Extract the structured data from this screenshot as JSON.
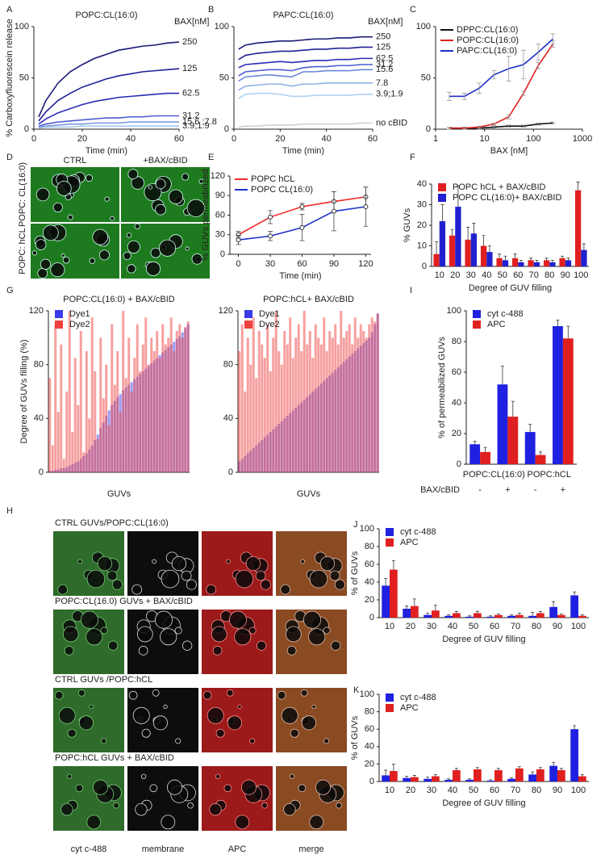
{
  "chart_data": [
    {
      "type": "line",
      "panel": "A",
      "title": "POPC:CL(16:0)",
      "legend_title": "BAX[nM]",
      "xlabel": "Time (min)",
      "ylabel": "% Carboxyfluorescein release",
      "end_labels": true,
      "x": [
        2,
        5,
        10,
        15,
        20,
        25,
        30,
        35,
        40,
        45,
        50,
        55,
        60
      ],
      "xlim": [
        0,
        60
      ],
      "xticks": [
        0,
        20,
        40,
        60
      ],
      "ylim": [
        0,
        100
      ],
      "yticks": [
        0,
        50,
        100
      ],
      "series": [
        {
          "name": "250",
          "color": "#1a1a78",
          "values": [
            12,
            28,
            45,
            56,
            63,
            69,
            73,
            77,
            79,
            81,
            82,
            84,
            85
          ]
        },
        {
          "name": "125",
          "color": "#202098",
          "values": [
            8,
            17,
            28,
            35,
            41,
            45,
            49,
            52,
            54,
            56,
            57,
            58,
            59
          ]
        },
        {
          "name": "62.5",
          "color": "#2a2ab8",
          "values": [
            5,
            10,
            16,
            20,
            24,
            27,
            29,
            31,
            32,
            33,
            34,
            35,
            35
          ]
        },
        {
          "name": "31.2",
          "color": "#4a5cd0",
          "values": [
            3,
            5,
            7,
            8,
            9,
            10,
            11,
            11,
            12,
            12,
            13,
            13,
            13
          ]
        },
        {
          "name": "15.6 ;7.8",
          "color": "#7a9ae0",
          "values": [
            2,
            3,
            4,
            5,
            5,
            6,
            6,
            6,
            7,
            7,
            7,
            7,
            7
          ]
        },
        {
          "name": "3.9;1.9",
          "color": "#a8c8ec",
          "values": [
            1,
            2,
            2,
            2,
            3,
            3,
            3,
            3,
            3,
            3,
            3,
            3,
            3
          ]
        }
      ]
    },
    {
      "type": "line",
      "panel": "B",
      "title": "PAPC:CL(16:0)",
      "legend_title": "BAX[nM]",
      "xlabel": "Time (min)",
      "end_labels": true,
      "x": [
        2,
        5,
        10,
        15,
        20,
        25,
        30,
        35,
        40,
        45,
        50,
        55,
        60
      ],
      "xlim": [
        0,
        60
      ],
      "xticks": [
        0,
        20,
        40,
        60
      ],
      "ylim": [
        0,
        100
      ],
      "yticks": [
        0,
        50,
        100
      ],
      "series": [
        {
          "name": "250",
          "color": "#1a1a78",
          "values": [
            78,
            82,
            84,
            85,
            86,
            86,
            87,
            88,
            88,
            89,
            89,
            90,
            90
          ]
        },
        {
          "name": "125",
          "color": "#202098",
          "values": [
            68,
            72,
            74,
            75,
            76,
            76,
            77,
            78,
            78,
            79,
            79,
            80,
            80
          ]
        },
        {
          "name": "62.5",
          "color": "#2a2ab8",
          "values": [
            60,
            63,
            64,
            65,
            66,
            65,
            66,
            67,
            67,
            68,
            68,
            69,
            69
          ]
        },
        {
          "name": "31.2",
          "color": "#4a5cd0",
          "values": [
            52,
            56,
            57,
            58,
            58,
            57,
            60,
            61,
            61,
            62,
            62,
            63,
            63
          ]
        },
        {
          "name": "15.6",
          "color": "#6a86dc",
          "values": [
            47,
            51,
            52,
            53,
            52,
            51,
            56,
            56,
            57,
            57,
            57,
            58,
            58
          ]
        },
        {
          "name": "7.8",
          "color": "#8fb0e6",
          "values": [
            38,
            42,
            43,
            44,
            44,
            42,
            44,
            44,
            45,
            45,
            45,
            45,
            45
          ]
        },
        {
          "name": "3.9;1.9",
          "color": "#b0d0f0",
          "values": [
            30,
            34,
            35,
            35,
            34,
            32,
            32,
            33,
            33,
            33,
            33,
            34,
            34
          ]
        },
        {
          "name": "no cBID",
          "color": "#d0d0d0",
          "values": [
            2,
            3,
            3,
            4,
            4,
            4,
            5,
            5,
            5,
            5,
            5,
            6,
            6
          ]
        }
      ]
    },
    {
      "type": "line",
      "panel": "C",
      "xlabel": "BAX [nM]",
      "log_x": true,
      "legend": "upper left",
      "x": [
        1.9,
        3.9,
        7.8,
        15.6,
        31.2,
        62.5,
        125,
        250
      ],
      "xlim": [
        1,
        1000
      ],
      "xticks": [
        1,
        10,
        100,
        1000
      ],
      "ylim": [
        0,
        100
      ],
      "yticks": [
        0,
        50,
        100
      ],
      "series": [
        {
          "name": "DPPC:CL(16:0)",
          "color": "#111111",
          "values": [
            1,
            1,
            1,
            2,
            3,
            3,
            5,
            6
          ],
          "errors": [
            1,
            1,
            1,
            1,
            1,
            1,
            1,
            1
          ]
        },
        {
          "name": "POPC:CL(16:0)",
          "color": "#e02020",
          "values": [
            1,
            1,
            2,
            5,
            12,
            35,
            62,
            83
          ],
          "errors": [
            1,
            1,
            1,
            1,
            2,
            2,
            3,
            3
          ]
        },
        {
          "name": "PAPC:CL(16:0)",
          "color": "#2030c8",
          "values": [
            32,
            32,
            40,
            53,
            59,
            63,
            75,
            88
          ],
          "errors": [
            4,
            3,
            5,
            4,
            12,
            14,
            8,
            5
          ]
        }
      ]
    },
    {
      "type": "line",
      "panel": "E",
      "xlabel": "Time (min)",
      "ylabel": "% GUVs permeabilized",
      "legend": "upper left",
      "markers": true,
      "x": [
        0,
        30,
        60,
        90,
        120
      ],
      "xlim": [
        -8,
        125
      ],
      "xticks": [
        0,
        30,
        60,
        90,
        120
      ],
      "ylim": [
        0,
        120
      ],
      "yticks": [
        0,
        30,
        60,
        90,
        120
      ],
      "series": [
        {
          "name": "POPC hCL",
          "color": "#f02828",
          "values": [
            30,
            57,
            73,
            81,
            88
          ],
          "errors": [
            5,
            10,
            5,
            15,
            15
          ]
        },
        {
          "name": "POPC CL(16:0)",
          "color": "#2030c8",
          "values": [
            22,
            28,
            41,
            66,
            73
          ],
          "errors": [
            7,
            7,
            20,
            30,
            30
          ]
        }
      ]
    },
    {
      "type": "bar",
      "panel": "F",
      "xlabel": "Degree of GUV filling",
      "ylabel": "% GUVs",
      "legend": "upper left",
      "categories": [
        "10",
        "20",
        "30",
        "40",
        "50",
        "60",
        "70",
        "80",
        "90",
        "100"
      ],
      "ylim": [
        0,
        40
      ],
      "yticks": [
        0,
        10,
        20,
        30,
        40
      ],
      "series": [
        {
          "name": "POPC hCL + BAX/cBID",
          "color": "#e02020",
          "values": [
            6,
            15,
            13,
            10,
            4,
            4,
            3,
            3,
            4,
            37
          ],
          "errors": [
            6,
            3,
            6,
            5,
            2,
            2,
            1,
            1,
            1,
            4
          ]
        },
        {
          "name": "POPC CL(16:0)+ BAX/cBID",
          "color": "#2020d0",
          "values": [
            22,
            29,
            16,
            7,
            3,
            2,
            2,
            2,
            3,
            8
          ],
          "errors": [
            8,
            10,
            5,
            3,
            2,
            1,
            1,
            1,
            1,
            3
          ]
        }
      ]
    },
    {
      "type": "bar",
      "panel": "G",
      "overlay": true,
      "title": "POPC:CL(16:0) + BAX/cBID",
      "xlabel": "GUVs",
      "ylabel": "Degree of GUVs filling (%)",
      "legend": "upper left",
      "ylim": [
        0,
        120
      ],
      "yticks": [
        0,
        40,
        80,
        120
      ],
      "series": [
        {
          "name": "Dye1",
          "color": "#3a3ae8",
          "values": [
            1,
            1,
            2,
            2,
            3,
            3,
            4,
            5,
            6,
            7,
            8,
            10,
            12,
            14,
            17,
            20,
            24,
            28,
            33,
            37,
            42,
            46,
            50,
            53,
            56,
            58,
            61,
            63,
            65,
            67,
            69,
            71,
            73,
            75,
            77,
            79,
            81,
            83,
            85,
            87,
            89,
            91,
            93,
            95,
            97,
            99,
            101,
            104,
            107,
            110
          ]
        },
        {
          "name": "Dye2",
          "color": "#f04040",
          "values": [
            70,
            20,
            110,
            45,
            95,
            10,
            60,
            120,
            30,
            85,
            50,
            105,
            15,
            90,
            40,
            115,
            75,
            25,
            100,
            55,
            80,
            35,
            110,
            65,
            90,
            45,
            120,
            70,
            100,
            60,
            85,
            110,
            75,
            95,
            115,
            80,
            100,
            90,
            105,
            85,
            110,
            95,
            100,
            115,
            90,
            105,
            110,
            100,
            108,
            112
          ]
        }
      ]
    },
    {
      "type": "bar",
      "overlay": true,
      "title": "POPC:hCL+ BAX/cBID",
      "xlabel": "GUVs",
      "legend": "upper left",
      "ylim": [
        0,
        120
      ],
      "yticks": [
        0,
        40,
        80,
        120
      ],
      "series": [
        {
          "name": "Dye1",
          "color": "#3a3ae8",
          "values": [
            8,
            10,
            12,
            14,
            16,
            18,
            20,
            22,
            24,
            26,
            28,
            30,
            32,
            34,
            36,
            38,
            40,
            42,
            44,
            46,
            48,
            50,
            52,
            54,
            56,
            58,
            60,
            62,
            64,
            66,
            68,
            70,
            72,
            74,
            76,
            78,
            80,
            82,
            84,
            86,
            88,
            90,
            92,
            94,
            96,
            98,
            100,
            104,
            110,
            118
          ]
        },
        {
          "name": "Dye2",
          "color": "#f04040",
          "values": [
            90,
            110,
            60,
            100,
            80,
            115,
            70,
            105,
            95,
            85,
            110,
            75,
            100,
            120,
            90,
            80,
            105,
            95,
            115,
            85,
            100,
            110,
            90,
            120,
            95,
            105,
            85,
            110,
            100,
            95,
            115,
            90,
            105,
            100,
            110,
            95,
            120,
            100,
            105,
            110,
            95,
            115,
            100,
            110,
            105,
            100,
            110,
            115,
            112,
            118
          ]
        }
      ]
    },
    {
      "type": "bar",
      "panel": "I",
      "ylabel": "% of permeabilized GUVs",
      "legend": "upper left",
      "categories": [
        "-",
        "+",
        "-",
        "+"
      ],
      "category_title": "BAX/cBID",
      "group_labels": [
        "POPC:CL(16:0)",
        "POPC:hCL"
      ],
      "ylim": [
        0,
        100
      ],
      "yticks": [
        0,
        20,
        40,
        60,
        80,
        100
      ],
      "series": [
        {
          "name": "cyt c-488",
          "color": "#2020e0",
          "values": [
            13,
            52,
            21,
            90
          ],
          "errors": [
            2,
            12,
            5,
            4
          ]
        },
        {
          "name": "APC",
          "color": "#e02020",
          "values": [
            8,
            31,
            6,
            82
          ],
          "errors": [
            3,
            10,
            2,
            8
          ]
        }
      ]
    },
    {
      "type": "bar",
      "panel": "J",
      "xlabel": "Degree of GUV filling",
      "ylabel": "% of GUVs",
      "legend": "upper left",
      "categories": [
        "10",
        "20",
        "30",
        "40",
        "50",
        "60",
        "70",
        "80",
        "90",
        "100"
      ],
      "ylim": [
        0,
        100
      ],
      "yticks": [
        0,
        20,
        40,
        60,
        80,
        100
      ],
      "series": [
        {
          "name": "cyt c-488",
          "color": "#2020e0",
          "values": [
            36,
            10,
            3,
            2,
            1,
            1,
            2,
            2,
            12,
            25
          ],
          "errors": [
            8,
            3,
            2,
            1,
            1,
            1,
            1,
            4,
            6,
            4
          ]
        },
        {
          "name": "APC",
          "color": "#e02020",
          "values": [
            54,
            13,
            8,
            5,
            5,
            3,
            3,
            5,
            3,
            2
          ],
          "errors": [
            10,
            8,
            6,
            2,
            2,
            1,
            2,
            2,
            1,
            1
          ]
        }
      ]
    },
    {
      "type": "bar",
      "panel": "K",
      "xlabel": "Degree of GUV filling",
      "ylabel": "% of GUVs",
      "legend": "upper left",
      "categories": [
        "10",
        "20",
        "30",
        "40",
        "50",
        "60",
        "70",
        "80",
        "90",
        "100"
      ],
      "ylim": [
        0,
        100
      ],
      "yticks": [
        0,
        20,
        40,
        60,
        80,
        100
      ],
      "series": [
        {
          "name": "cyt c-488",
          "color": "#2020e0",
          "values": [
            7,
            4,
            3,
            2,
            2,
            1,
            3,
            8,
            18,
            60
          ],
          "errors": [
            6,
            2,
            2,
            1,
            1,
            1,
            1,
            3,
            4,
            4
          ]
        },
        {
          "name": "APC",
          "color": "#e02020",
          "values": [
            12,
            5,
            6,
            13,
            14,
            13,
            15,
            14,
            13,
            6
          ],
          "errors": [
            8,
            2,
            2,
            2,
            2,
            2,
            2,
            2,
            2,
            2
          ]
        }
      ]
    }
  ],
  "images": [
    {
      "panel": "D",
      "columns": [
        "CTRL",
        "+BAX/cBID"
      ],
      "rows": [
        "POPC: CL(16:0)",
        "POPC: hCL"
      ]
    },
    {
      "panel": "H",
      "rows": [
        "CTRL GUVs/POPC:CL(16:0)",
        "POPC:CL(16.0) GUVs + BAX/cBID",
        "CTRL GUVs /POPC:hCL",
        "POPC:hCL GUVs + BAX/cBID"
      ],
      "columns": [
        "cyt c-488",
        "membrane",
        "APC",
        "merge"
      ]
    }
  ]
}
